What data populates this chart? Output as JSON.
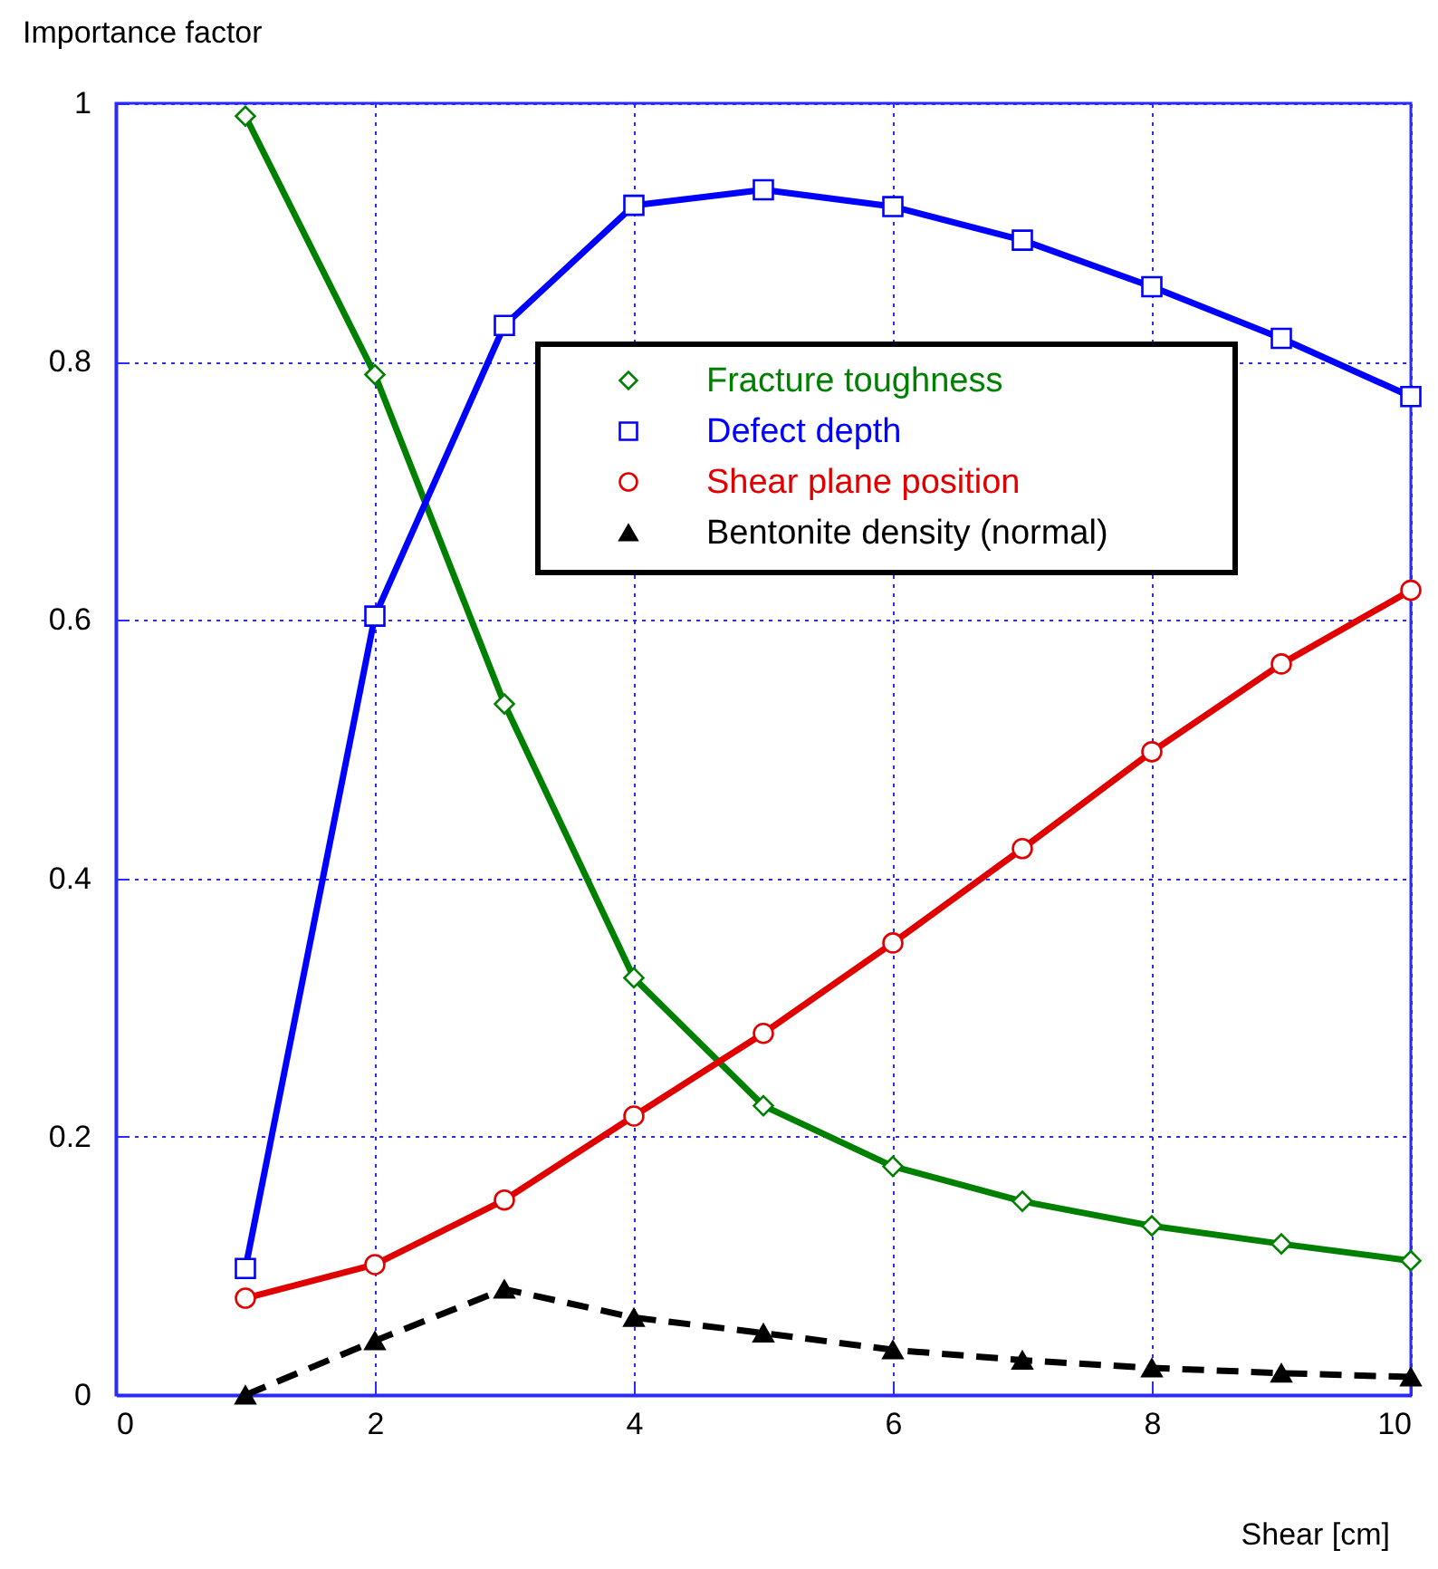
{
  "chart_data": {
    "type": "line",
    "xlabel": "Shear [cm]",
    "ylabel": "Importance factor",
    "x": [
      1,
      2,
      3,
      4,
      5,
      6,
      7,
      8,
      9,
      10
    ],
    "xlim": [
      0,
      10
    ],
    "xticks": [
      0,
      2,
      4,
      6,
      8,
      10
    ],
    "ylim": [
      0,
      1
    ],
    "yticks": [
      0,
      0.2,
      0.4,
      0.6,
      0.8,
      1
    ],
    "grid": true,
    "legend": "top right",
    "series": [
      {
        "name": "Fracture toughness",
        "color": "#008000",
        "marker": "diamond",
        "line_style": "solid",
        "values": [
          0.99,
          0.79,
          0.535,
          0.323,
          0.224,
          0.177,
          0.15,
          0.131,
          0.117,
          0.104
        ]
      },
      {
        "name": "Defect depth",
        "color": "#0000ff",
        "marker": "square",
        "line_style": "solid",
        "values": [
          0.098,
          0.603,
          0.828,
          0.921,
          0.933,
          0.92,
          0.894,
          0.858,
          0.818,
          0.773
        ]
      },
      {
        "name": "Shear plane position",
        "color": "#e00000",
        "marker": "circle",
        "line_style": "solid",
        "values": [
          0.075,
          0.101,
          0.151,
          0.216,
          0.28,
          0.35,
          0.423,
          0.498,
          0.566,
          0.623
        ]
      },
      {
        "name": "Bentonite density (normal)",
        "color": "#000000",
        "marker": "triangle",
        "line_style": "dashed",
        "values": [
          0.0,
          0.042,
          0.082,
          0.06,
          0.048,
          0.035,
          0.027,
          0.021,
          0.017,
          0.014
        ]
      }
    ]
  }
}
